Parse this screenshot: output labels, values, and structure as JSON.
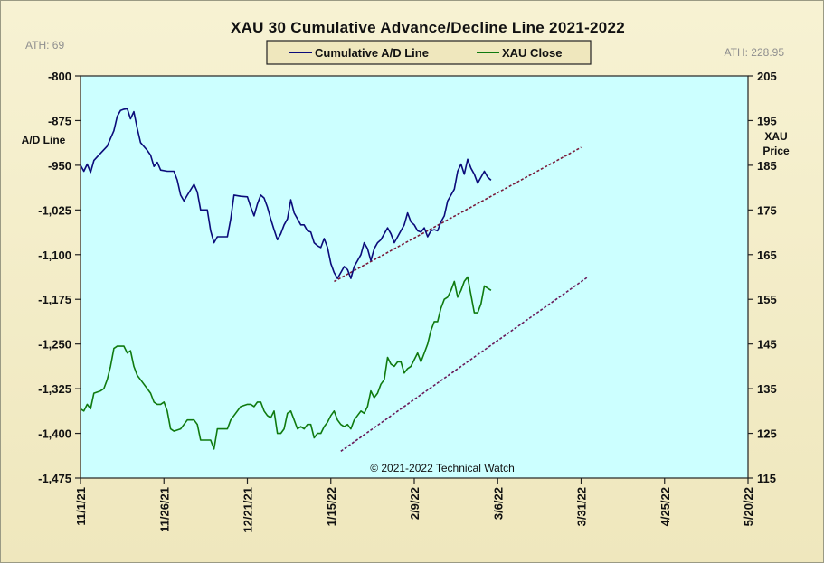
{
  "chart_data": {
    "type": "line",
    "title": "XAU 30 Cumulative Advance/Decline Line 2021-2022",
    "ath_left": "ATH: 69",
    "ath_right": "ATH: 228.95",
    "ylabel_left": "A/D Line",
    "ylabel_right_line1": "XAU",
    "ylabel_right_line2": "Price",
    "copyright": "© 2021-2022  Technical  Watch",
    "grid": false,
    "legend_placement": "top-center",
    "background_color": "#ccffff",
    "x_range": [
      0,
      200
    ],
    "x_ticks": [
      {
        "x": 0,
        "label": "11/1/21"
      },
      {
        "x": 25,
        "label": "11/26/21"
      },
      {
        "x": 50,
        "label": "12/21/21"
      },
      {
        "x": 75,
        "label": "1/15/22"
      },
      {
        "x": 100,
        "label": "2/9/22"
      },
      {
        "x": 125,
        "label": "3/6/22"
      },
      {
        "x": 150,
        "label": "3/31/22"
      },
      {
        "x": 175,
        "label": "4/25/22"
      },
      {
        "x": 200,
        "label": "5/20/22"
      }
    ],
    "ylim_left": [
      -1475,
      -800
    ],
    "yticks_left": [
      -800,
      -875,
      -950,
      -1025,
      -1100,
      -1175,
      -1250,
      -1325,
      -1400,
      -1475
    ],
    "yticks_left_labels": [
      "-800",
      "-875",
      "-950",
      "-1,025",
      "-1,100",
      "-1,175",
      "-1,250",
      "-1,325",
      "-1,400",
      "-1,475"
    ],
    "ylim_right": [
      115,
      205
    ],
    "yticks_right": [
      205,
      195,
      185,
      175,
      165,
      155,
      145,
      135,
      125,
      115
    ],
    "yticks_right_labels": [
      "205",
      "195",
      "185",
      "175",
      "165",
      "155",
      "145",
      "135",
      "125",
      "115"
    ],
    "series": [
      {
        "name": "Cumulative A/D Line",
        "axis": "left",
        "color": "#0b0b7a",
        "points": [
          [
            0,
            -950
          ],
          [
            1,
            -960
          ],
          [
            2,
            -948
          ],
          [
            3,
            -962
          ],
          [
            4,
            -942
          ],
          [
            6,
            -930
          ],
          [
            8,
            -918
          ],
          [
            9,
            -905
          ],
          [
            10,
            -892
          ],
          [
            11,
            -868
          ],
          [
            12,
            -858
          ],
          [
            13,
            -856
          ],
          [
            14,
            -855
          ],
          [
            15,
            -872
          ],
          [
            16,
            -860
          ],
          [
            17,
            -888
          ],
          [
            18,
            -912
          ],
          [
            20,
            -925
          ],
          [
            21,
            -933
          ],
          [
            22,
            -952
          ],
          [
            23,
            -945
          ],
          [
            24,
            -958
          ],
          [
            26,
            -960
          ],
          [
            28,
            -960
          ],
          [
            29,
            -975
          ],
          [
            30,
            -1000
          ],
          [
            31,
            -1010
          ],
          [
            32,
            -1000
          ],
          [
            34,
            -982
          ],
          [
            35,
            -995
          ],
          [
            36,
            -1025
          ],
          [
            37,
            -1025
          ],
          [
            38,
            -1025
          ],
          [
            39,
            -1060
          ],
          [
            40,
            -1080
          ],
          [
            41,
            -1070
          ],
          [
            42,
            -1070
          ],
          [
            44,
            -1070
          ],
          [
            45,
            -1040
          ],
          [
            46,
            -1000
          ],
          [
            48,
            -1002
          ],
          [
            50,
            -1003
          ],
          [
            51,
            -1020
          ],
          [
            52,
            -1035
          ],
          [
            53,
            -1015
          ],
          [
            54,
            -1000
          ],
          [
            55,
            -1005
          ],
          [
            56,
            -1020
          ],
          [
            57,
            -1040
          ],
          [
            58,
            -1058
          ],
          [
            59,
            -1075
          ],
          [
            60,
            -1065
          ],
          [
            61,
            -1050
          ],
          [
            62,
            -1040
          ],
          [
            63,
            -1008
          ],
          [
            64,
            -1030
          ],
          [
            65,
            -1040
          ],
          [
            66,
            -1050
          ],
          [
            67,
            -1050
          ],
          [
            68,
            -1060
          ],
          [
            69,
            -1062
          ],
          [
            70,
            -1080
          ],
          [
            71,
            -1085
          ],
          [
            72,
            -1088
          ],
          [
            73,
            -1073
          ],
          [
            74,
            -1088
          ],
          [
            75,
            -1115
          ],
          [
            76,
            -1130
          ],
          [
            77,
            -1140
          ],
          [
            78,
            -1130
          ],
          [
            79,
            -1120
          ],
          [
            80,
            -1125
          ],
          [
            81,
            -1140
          ],
          [
            82,
            -1120
          ],
          [
            84,
            -1100
          ],
          [
            85,
            -1080
          ],
          [
            86,
            -1090
          ],
          [
            87,
            -1110
          ],
          [
            88,
            -1090
          ],
          [
            89,
            -1080
          ],
          [
            90,
            -1075
          ],
          [
            91,
            -1065
          ],
          [
            92,
            -1055
          ],
          [
            93,
            -1065
          ],
          [
            94,
            -1080
          ],
          [
            95,
            -1070
          ],
          [
            96,
            -1060
          ],
          [
            97,
            -1050
          ],
          [
            98,
            -1030
          ],
          [
            99,
            -1045
          ],
          [
            100,
            -1050
          ],
          [
            101,
            -1060
          ],
          [
            102,
            -1062
          ],
          [
            103,
            -1055
          ],
          [
            104,
            -1070
          ],
          [
            105,
            -1060
          ],
          [
            106,
            -1058
          ],
          [
            107,
            -1060
          ],
          [
            108,
            -1045
          ],
          [
            109,
            -1035
          ],
          [
            110,
            -1010
          ],
          [
            111,
            -1000
          ],
          [
            112,
            -990
          ],
          [
            113,
            -960
          ],
          [
            114,
            -948
          ],
          [
            115,
            -965
          ],
          [
            116,
            -940
          ],
          [
            117,
            -955
          ],
          [
            118,
            -965
          ],
          [
            119,
            -980
          ],
          [
            120,
            -970
          ],
          [
            121,
            -960
          ],
          [
            122,
            -970
          ],
          [
            123,
            -975
          ]
        ]
      },
      {
        "name": "XAU Close",
        "axis": "right",
        "color": "#0f7a0f",
        "points": [
          [
            0,
            130.5
          ],
          [
            1,
            130
          ],
          [
            2,
            131.5
          ],
          [
            3,
            130.5
          ],
          [
            4,
            134
          ],
          [
            6,
            134.5
          ],
          [
            7,
            135
          ],
          [
            8,
            137
          ],
          [
            9,
            140
          ],
          [
            10,
            144
          ],
          [
            11,
            144.5
          ],
          [
            12,
            144.5
          ],
          [
            13,
            144.5
          ],
          [
            14,
            143
          ],
          [
            15,
            143.5
          ],
          [
            16,
            140
          ],
          [
            17,
            138
          ],
          [
            18,
            137
          ],
          [
            20,
            135
          ],
          [
            21,
            134
          ],
          [
            22,
            132
          ],
          [
            23,
            131.5
          ],
          [
            24,
            131.5
          ],
          [
            25,
            132
          ],
          [
            26,
            130
          ],
          [
            27,
            126
          ],
          [
            28,
            125.5
          ],
          [
            30,
            126
          ],
          [
            31,
            127
          ],
          [
            32,
            128
          ],
          [
            34,
            128
          ],
          [
            35,
            127
          ],
          [
            36,
            123.5
          ],
          [
            37,
            123.5
          ],
          [
            38,
            123.5
          ],
          [
            39,
            123.5
          ],
          [
            40,
            121.5
          ],
          [
            41,
            126
          ],
          [
            42,
            126
          ],
          [
            44,
            126
          ],
          [
            45,
            128
          ],
          [
            46,
            129
          ],
          [
            48,
            131
          ],
          [
            50,
            131.5
          ],
          [
            51,
            131.5
          ],
          [
            52,
            131
          ],
          [
            53,
            132
          ],
          [
            54,
            132
          ],
          [
            55,
            130
          ],
          [
            56,
            129
          ],
          [
            57,
            128.5
          ],
          [
            58,
            130
          ],
          [
            59,
            125
          ],
          [
            60,
            125
          ],
          [
            61,
            126
          ],
          [
            62,
            129.5
          ],
          [
            63,
            130
          ],
          [
            64,
            128
          ],
          [
            65,
            126
          ],
          [
            66,
            126.5
          ],
          [
            67,
            126
          ],
          [
            68,
            127
          ],
          [
            69,
            127
          ],
          [
            70,
            124
          ],
          [
            71,
            125
          ],
          [
            72,
            125
          ],
          [
            73,
            126.5
          ],
          [
            74,
            127.5
          ],
          [
            75,
            129
          ],
          [
            76,
            130
          ],
          [
            77,
            128
          ],
          [
            78,
            127
          ],
          [
            79,
            126.5
          ],
          [
            80,
            127
          ],
          [
            81,
            126
          ],
          [
            82,
            128
          ],
          [
            84,
            130
          ],
          [
            85,
            129.5
          ],
          [
            86,
            131
          ],
          [
            87,
            134.5
          ],
          [
            88,
            133
          ],
          [
            89,
            134
          ],
          [
            90,
            136
          ],
          [
            91,
            137
          ],
          [
            92,
            142
          ],
          [
            93,
            140.5
          ],
          [
            94,
            140
          ],
          [
            95,
            141
          ],
          [
            96,
            141
          ],
          [
            97,
            138.5
          ],
          [
            98,
            139.5
          ],
          [
            99,
            140
          ],
          [
            100,
            141.5
          ],
          [
            101,
            143
          ],
          [
            102,
            141
          ],
          [
            103,
            143
          ],
          [
            104,
            145
          ],
          [
            105,
            148
          ],
          [
            106,
            150
          ],
          [
            107,
            150
          ],
          [
            108,
            153
          ],
          [
            109,
            155
          ],
          [
            110,
            155.5
          ],
          [
            111,
            157
          ],
          [
            112,
            159
          ],
          [
            113,
            155.5
          ],
          [
            114,
            157
          ],
          [
            115,
            159
          ],
          [
            116,
            160
          ],
          [
            117,
            156
          ],
          [
            118,
            152
          ],
          [
            119,
            152
          ],
          [
            120,
            154
          ],
          [
            121,
            158
          ],
          [
            122,
            157.5
          ],
          [
            123,
            157
          ]
        ]
      }
    ],
    "trendlines": [
      {
        "axis": "left",
        "from": [
          76,
          -1145
        ],
        "to": [
          150,
          -920
        ],
        "color": "#7a1a3a",
        "style": "dotted"
      },
      {
        "axis": "right",
        "from": [
          78,
          121
        ],
        "to": [
          152,
          160
        ],
        "color": "#6a1a5a",
        "style": "dotted"
      }
    ]
  }
}
